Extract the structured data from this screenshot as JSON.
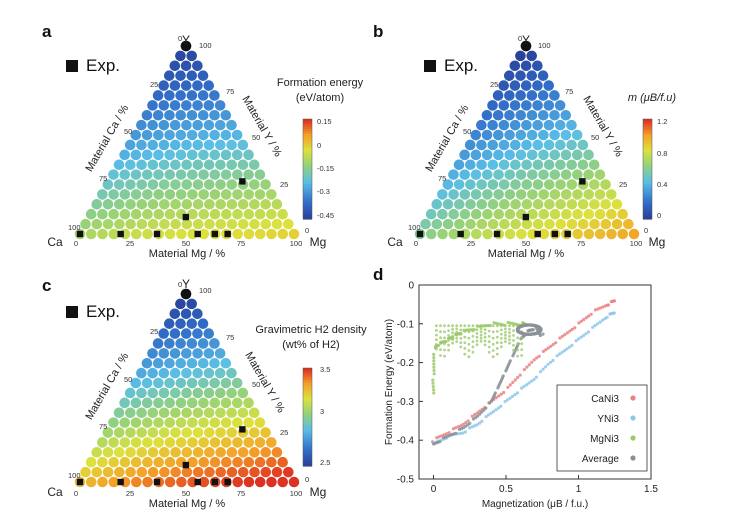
{
  "chart_data": [
    {
      "type": "heatmap",
      "panel": "a",
      "subtype": "ternary",
      "exp_label": "Exp.",
      "corners": {
        "top": "Y",
        "left": "Ca",
        "right": "Mg"
      },
      "axis_labels": {
        "left": "Material Ca / %",
        "right": "Material Y / %",
        "bottom": "Material Mg / %"
      },
      "ticks": {
        "left": [
          "100",
          "75",
          "50",
          "25",
          "0"
        ],
        "right": [
          "100",
          "75",
          "50",
          "25",
          "0"
        ],
        "bottom": [
          "0",
          "25",
          "50",
          "75",
          "100"
        ]
      },
      "colorbar": {
        "title1": "Formation energy",
        "title2": "(eV/atom)",
        "ticks": [
          "0.15",
          "0",
          "-0.15",
          "-0.3",
          "-0.45"
        ],
        "range": [
          -0.5,
          0.15
        ]
      },
      "field": {
        "corner_values": {
          "Y": -0.49,
          "Ca": -0.12,
          "Mg": -0.02
        }
      },
      "exp_points": [
        [
          0,
          0
        ],
        [
          0,
          19
        ],
        [
          0,
          36
        ],
        [
          0,
          55
        ],
        [
          0,
          63
        ],
        [
          0,
          69
        ],
        [
          9,
          45
        ],
        [
          28,
          62
        ]
      ]
    },
    {
      "type": "heatmap",
      "panel": "b",
      "subtype": "ternary",
      "exp_label": "Exp.",
      "corners": {
        "top": "Y",
        "left": "Ca",
        "right": "Mg"
      },
      "axis_labels": {
        "left": "Material Ca / %",
        "right": "Material Y / %",
        "bottom": "Material Mg / %"
      },
      "ticks": {
        "left": [
          "100",
          "75",
          "50",
          "25",
          "0"
        ],
        "right": [
          "100",
          "75",
          "50",
          "25",
          "0"
        ],
        "bottom": [
          "0",
          "25",
          "50",
          "75",
          "100"
        ]
      },
      "colorbar": {
        "title1": "m (μB/f.u)",
        "title2": "",
        "ticks": [
          "1.2",
          "0.8",
          "0.4",
          "0"
        ],
        "range": [
          0,
          1.2
        ]
      },
      "field": {
        "corner_values": {
          "Y": 0.0,
          "Ca": 0.6,
          "Mg": 1.0
        }
      },
      "exp_points": [
        [
          0,
          0
        ],
        [
          0,
          19
        ],
        [
          0,
          36
        ],
        [
          0,
          55
        ],
        [
          0,
          63
        ],
        [
          0,
          69
        ],
        [
          9,
          45
        ],
        [
          28,
          62
        ]
      ]
    },
    {
      "type": "heatmap",
      "panel": "c",
      "subtype": "ternary",
      "exp_label": "Exp.",
      "corners": {
        "top": "Y",
        "left": "Ca",
        "right": "Mg"
      },
      "axis_labels": {
        "left": "Material Ca / %",
        "right": "Material Y / %",
        "bottom": "Material Mg / %"
      },
      "ticks": {
        "left": [
          "100",
          "75",
          "50",
          "25",
          "0"
        ],
        "right": [
          "100",
          "75",
          "50",
          "25",
          "0"
        ],
        "bottom": [
          "0",
          "25",
          "50",
          "75",
          "100"
        ]
      },
      "colorbar": {
        "title1": "Gravimetric H2 density",
        "title2": "(wt% of H2)",
        "ticks": [
          "3.5",
          "3",
          "2.5"
        ],
        "range": [
          2.4,
          3.55
        ]
      },
      "field": {
        "corner_values": {
          "Y": 2.4,
          "Ca": 3.3,
          "Mg": 3.6
        }
      },
      "exp_points": [
        [
          0,
          0
        ],
        [
          0,
          19
        ],
        [
          0,
          36
        ],
        [
          0,
          55
        ],
        [
          0,
          63
        ],
        [
          0,
          69
        ],
        [
          9,
          45
        ],
        [
          28,
          62
        ]
      ]
    },
    {
      "type": "scatter",
      "panel": "d",
      "xlabel": "Magnetization (μB / f.u.)",
      "ylabel": "Formation Energy (eV/atom)",
      "xlim": [
        -0.1,
        1.5
      ],
      "ylim": [
        -0.5,
        0.0
      ],
      "xticks": [
        "0",
        "0.5",
        "1",
        "1.5"
      ],
      "yticks": [
        "0",
        "-0.1",
        "-0.2",
        "-0.3",
        "-0.4",
        "-0.5"
      ],
      "series": [
        {
          "name": "CaNi3",
          "color": "#e98282",
          "x": [
            0.0,
            0.1,
            0.2,
            0.3,
            0.4,
            0.5,
            0.6,
            0.7,
            0.8,
            0.9,
            1.0,
            1.1,
            1.2,
            1.25
          ],
          "y": [
            -0.4,
            -0.38,
            -0.36,
            -0.33,
            -0.3,
            -0.27,
            -0.23,
            -0.19,
            -0.16,
            -0.13,
            -0.1,
            -0.07,
            -0.05,
            -0.04
          ]
        },
        {
          "name": "YNi3",
          "color": "#8fc7ea",
          "x": [
            0.0,
            0.1,
            0.2,
            0.3,
            0.4,
            0.5,
            0.6,
            0.7,
            0.8,
            0.9,
            1.0,
            1.1,
            1.2,
            1.25
          ],
          "y": [
            -0.41,
            -0.39,
            -0.38,
            -0.36,
            -0.33,
            -0.3,
            -0.27,
            -0.24,
            -0.2,
            -0.17,
            -0.14,
            -0.11,
            -0.08,
            -0.07
          ]
        },
        {
          "name": "MgNi3",
          "color": "#9cc96b",
          "x": [
            0.0,
            0.0,
            0.01,
            0.05,
            0.1,
            0.15,
            0.2,
            0.3,
            0.4,
            0.5,
            0.6,
            0.65
          ],
          "y": [
            -0.28,
            -0.22,
            -0.16,
            -0.15,
            -0.14,
            -0.13,
            -0.12,
            -0.11,
            -0.1,
            -0.1,
            -0.1,
            -0.1
          ]
        },
        {
          "name": "Average",
          "color": "#8a8f98",
          "x": [
            0.0,
            0.1,
            0.2,
            0.3,
            0.4,
            0.45,
            0.5,
            0.55,
            0.6,
            0.65,
            0.7,
            0.75
          ],
          "y": [
            -0.41,
            -0.39,
            -0.37,
            -0.34,
            -0.3,
            -0.26,
            -0.22,
            -0.18,
            -0.14,
            -0.12,
            -0.11,
            -0.13
          ]
        }
      ],
      "legend": [
        "CaNi3",
        "YNi3",
        "MgNi3",
        "Average"
      ]
    }
  ]
}
